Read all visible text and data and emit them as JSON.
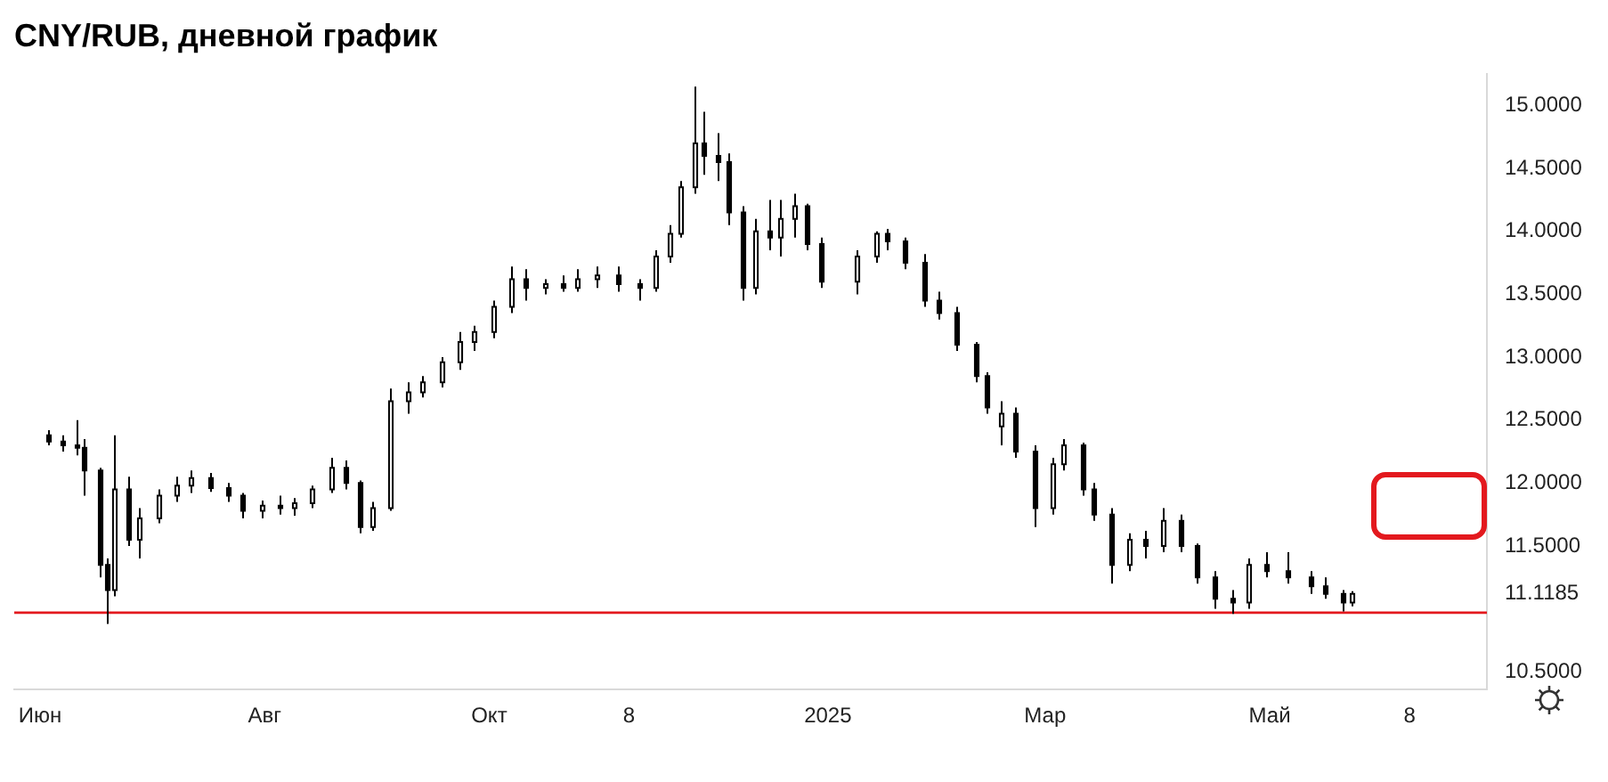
{
  "chart_data": {
    "type": "candlestick",
    "title": "CNY/RUB, дневной график",
    "color": "#000000",
    "x": [
      "2024-06-03",
      "2024-06-07",
      "2024-06-11",
      "2024-06-13",
      "2024-06-17",
      "2024-06-19",
      "2024-06-21",
      "2024-06-25",
      "2024-06-28",
      "2024-07-03",
      "2024-07-08",
      "2024-07-12",
      "2024-07-17",
      "2024-07-22",
      "2024-07-26",
      "2024-07-31",
      "2024-08-05",
      "2024-08-09",
      "2024-08-14",
      "2024-08-19",
      "2024-08-23",
      "2024-08-27",
      "2024-08-30",
      "2024-09-04",
      "2024-09-09",
      "2024-09-13",
      "2024-09-18",
      "2024-09-23",
      "2024-09-27",
      "2024-10-02",
      "2024-10-07",
      "2024-10-11",
      "2024-10-16",
      "2024-10-21",
      "2024-10-25",
      "2024-10-30",
      "2024-11-05",
      "2024-11-11",
      "2024-11-15",
      "2024-11-19",
      "2024-11-22",
      "2024-11-26",
      "2024-11-28",
      "2024-12-02",
      "2024-12-05",
      "2024-12-09",
      "2024-12-12",
      "2024-12-16",
      "2024-12-19",
      "2024-12-23",
      "2024-12-26",
      "2024-12-30",
      "2025-01-09",
      "2025-01-14",
      "2025-01-17",
      "2025-01-22",
      "2025-01-27",
      "2025-01-31",
      "2025-02-05",
      "2025-02-10",
      "2025-02-13",
      "2025-02-17",
      "2025-02-21",
      "2025-02-26",
      "2025-03-03",
      "2025-03-06",
      "2025-03-11",
      "2025-03-14",
      "2025-03-19",
      "2025-03-24",
      "2025-03-28",
      "2025-04-02",
      "2025-04-07",
      "2025-04-11",
      "2025-04-16",
      "2025-04-21",
      "2025-04-25",
      "2025-04-30",
      "2025-05-06",
      "2025-05-12",
      "2025-05-16",
      "2025-05-21",
      "2025-05-23"
    ],
    "ohlc": [
      [
        12.38,
        12.42,
        12.3,
        12.33
      ],
      [
        12.33,
        12.38,
        12.25,
        12.3
      ],
      [
        12.3,
        12.5,
        12.22,
        12.28
      ],
      [
        12.28,
        12.35,
        11.9,
        12.1
      ],
      [
        12.1,
        12.12,
        11.25,
        11.35
      ],
      [
        11.35,
        11.4,
        10.88,
        11.15
      ],
      [
        11.15,
        12.38,
        11.1,
        11.95
      ],
      [
        11.95,
        12.05,
        11.5,
        11.55
      ],
      [
        11.55,
        11.8,
        11.4,
        11.72
      ],
      [
        11.72,
        11.95,
        11.68,
        11.9
      ],
      [
        11.9,
        12.05,
        11.85,
        11.98
      ],
      [
        11.98,
        12.1,
        11.92,
        12.04
      ],
      [
        12.04,
        12.08,
        11.93,
        11.96
      ],
      [
        11.96,
        12,
        11.85,
        11.9
      ],
      [
        11.9,
        11.92,
        11.72,
        11.78
      ],
      [
        11.78,
        11.86,
        11.72,
        11.82
      ],
      [
        11.82,
        11.9,
        11.75,
        11.8
      ],
      [
        11.8,
        11.88,
        11.74,
        11.84
      ],
      [
        11.84,
        11.98,
        11.8,
        11.95
      ],
      [
        11.95,
        12.2,
        11.92,
        12.12
      ],
      [
        12.12,
        12.18,
        11.95,
        12
      ],
      [
        12,
        12.02,
        11.6,
        11.65
      ],
      [
        11.65,
        11.85,
        11.62,
        11.8
      ],
      [
        11.8,
        12.75,
        11.78,
        12.65
      ],
      [
        12.65,
        12.8,
        12.55,
        12.72
      ],
      [
        12.72,
        12.85,
        12.68,
        12.8
      ],
      [
        12.8,
        13,
        12.76,
        12.96
      ],
      [
        12.96,
        13.2,
        12.9,
        13.12
      ],
      [
        13.12,
        13.25,
        13.05,
        13.2
      ],
      [
        13.2,
        13.45,
        13.15,
        13.4
      ],
      [
        13.4,
        13.72,
        13.35,
        13.62
      ],
      [
        13.62,
        13.7,
        13.45,
        13.55
      ],
      [
        13.55,
        13.62,
        13.5,
        13.58
      ],
      [
        13.58,
        13.65,
        13.52,
        13.55
      ],
      [
        13.55,
        13.7,
        13.52,
        13.62
      ],
      [
        13.62,
        13.72,
        13.55,
        13.65
      ],
      [
        13.65,
        13.72,
        13.52,
        13.58
      ],
      [
        13.58,
        13.62,
        13.45,
        13.55
      ],
      [
        13.55,
        13.85,
        13.52,
        13.8
      ],
      [
        13.8,
        14.05,
        13.75,
        13.98
      ],
      [
        13.98,
        14.4,
        13.95,
        14.35
      ],
      [
        14.35,
        15.15,
        14.3,
        14.7
      ],
      [
        14.7,
        14.95,
        14.45,
        14.6
      ],
      [
        14.6,
        14.78,
        14.4,
        14.55
      ],
      [
        14.55,
        14.62,
        14.05,
        14.15
      ],
      [
        14.15,
        14.2,
        13.45,
        13.55
      ],
      [
        13.55,
        14.1,
        13.5,
        14
      ],
      [
        14,
        14.25,
        13.85,
        13.95
      ],
      [
        13.95,
        14.25,
        13.8,
        14.1
      ],
      [
        14.1,
        14.3,
        13.95,
        14.2
      ],
      [
        14.2,
        14.22,
        13.85,
        13.9
      ],
      [
        13.9,
        13.95,
        13.55,
        13.6
      ],
      [
        13.6,
        13.85,
        13.5,
        13.8
      ],
      [
        13.8,
        14,
        13.75,
        13.98
      ],
      [
        13.98,
        14.02,
        13.85,
        13.92
      ],
      [
        13.92,
        13.95,
        13.7,
        13.75
      ],
      [
        13.75,
        13.82,
        13.4,
        13.45
      ],
      [
        13.45,
        13.52,
        13.3,
        13.35
      ],
      [
        13.35,
        13.4,
        13.05,
        13.1
      ],
      [
        13.1,
        13.12,
        12.8,
        12.85
      ],
      [
        12.85,
        12.88,
        12.55,
        12.6
      ],
      [
        12.45,
        12.65,
        12.3,
        12.55
      ],
      [
        12.55,
        12.6,
        12.2,
        12.25
      ],
      [
        12.25,
        12.3,
        11.65,
        11.8
      ],
      [
        11.8,
        12.2,
        11.75,
        12.15
      ],
      [
        12.15,
        12.35,
        12.1,
        12.3
      ],
      [
        12.3,
        12.32,
        11.9,
        11.95
      ],
      [
        11.95,
        12,
        11.7,
        11.75
      ],
      [
        11.75,
        11.8,
        11.2,
        11.35
      ],
      [
        11.35,
        11.6,
        11.3,
        11.55
      ],
      [
        11.55,
        11.62,
        11.4,
        11.5
      ],
      [
        11.5,
        11.8,
        11.45,
        11.7
      ],
      [
        11.7,
        11.75,
        11.45,
        11.5
      ],
      [
        11.5,
        11.52,
        11.2,
        11.25
      ],
      [
        11.25,
        11.3,
        11,
        11.08
      ],
      [
        11.08,
        11.15,
        10.96,
        11.05
      ],
      [
        11.05,
        11.4,
        11,
        11.35
      ],
      [
        11.35,
        11.45,
        11.25,
        11.3
      ],
      [
        11.3,
        11.45,
        11.2,
        11.25
      ],
      [
        11.25,
        11.3,
        11.12,
        11.18
      ],
      [
        11.18,
        11.25,
        11.08,
        11.12
      ],
      [
        11.12,
        11.15,
        10.98,
        11.05
      ],
      [
        11.05,
        11.14,
        11.02,
        11.1185
      ]
    ],
    "xlim": [
      "2024-05-25",
      "2025-06-29"
    ],
    "xticks": [
      {
        "value": "2024-06-01",
        "label": "Июн"
      },
      {
        "value": "2024-08-01",
        "label": "Авг"
      },
      {
        "value": "2024-10-01",
        "label": "Окт"
      },
      {
        "value": "2024-11-08",
        "label": "8"
      },
      {
        "value": "2025-01-01",
        "label": "2025"
      },
      {
        "value": "2025-03-01",
        "label": "Мар"
      },
      {
        "value": "2025-05-01",
        "label": "Май"
      },
      {
        "value": "2025-06-08",
        "label": "8"
      }
    ],
    "ylim": [
      10.36,
      15.25
    ],
    "yticks": [
      {
        "value": 10.5,
        "label": "10.5000"
      },
      {
        "value": 11.1185,
        "label": "11.1185"
      },
      {
        "value": 11.5,
        "label": "11.5000"
      },
      {
        "value": 12,
        "label": "12.0000"
      },
      {
        "value": 12.5,
        "label": "12.5000"
      },
      {
        "value": 13,
        "label": "13.0000"
      },
      {
        "value": 13.5,
        "label": "13.5000"
      },
      {
        "value": 14,
        "label": "14.0000"
      },
      {
        "value": 14.5,
        "label": "14.5000"
      },
      {
        "value": 15,
        "label": "15.0000"
      }
    ],
    "ref_lines": [
      {
        "axis": "y",
        "value": 10.97,
        "color": "#e3191e"
      }
    ]
  }
}
